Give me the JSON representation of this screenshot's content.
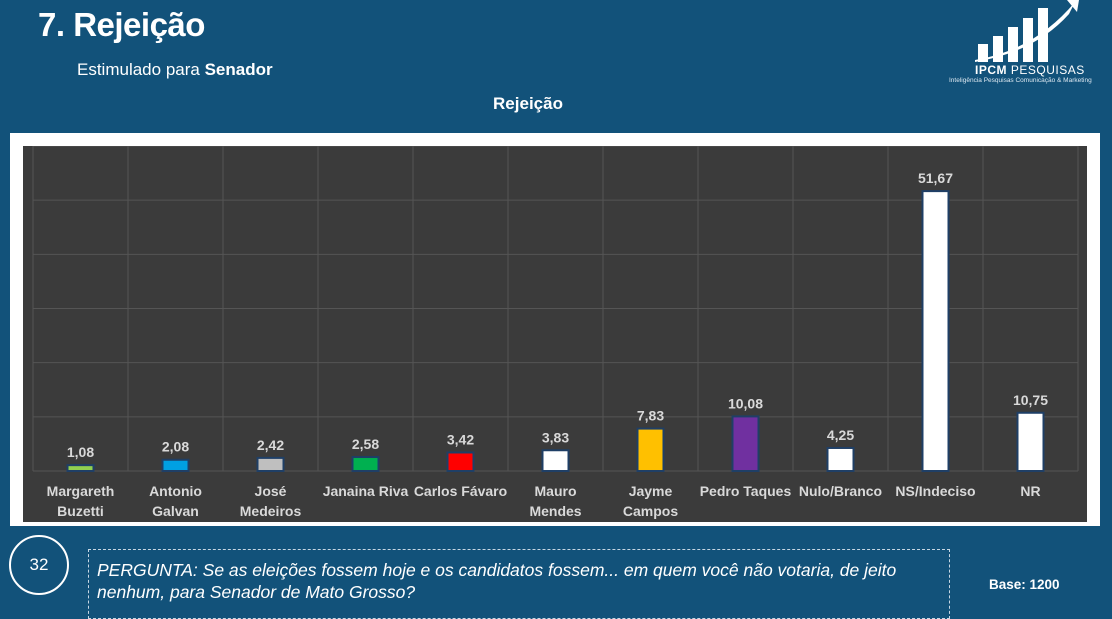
{
  "header": {
    "title": "7. Rejeição",
    "subtitle_prefix": "Estimulado para ",
    "subtitle_bold": "Senador"
  },
  "logo": {
    "brand_bold": "IPCM",
    "brand_light": "PESQUISAS",
    "tagline": "Inteligência Pesquisas Comunicação & Marketing"
  },
  "chart_data": {
    "type": "bar",
    "title": "Rejeição",
    "categories": [
      [
        "Margareth",
        "Buzetti"
      ],
      [
        "Antonio",
        "Galvan"
      ],
      [
        "José",
        "Medeiros"
      ],
      [
        "Janaina Riva"
      ],
      [
        "Carlos Fávaro"
      ],
      [
        "Mauro",
        "Mendes"
      ],
      [
        "Jayme",
        "Campos"
      ],
      [
        "Pedro Taques"
      ],
      [
        "Nulo/Branco"
      ],
      [
        "NS/Indeciso"
      ],
      [
        "NR"
      ]
    ],
    "values": [
      1.08,
      2.08,
      2.42,
      2.58,
      3.42,
      3.83,
      7.83,
      10.08,
      4.25,
      51.67,
      10.75
    ],
    "labels": [
      "1,08",
      "2,08",
      "2,42",
      "2,58",
      "3,42",
      "3,83",
      "7,83",
      "10,08",
      "4,25",
      "51,67",
      "10,75"
    ],
    "colors": [
      "#92d050",
      "#00a0e3",
      "#bfbfbf",
      "#00b050",
      "#ff0000",
      "#ffffff",
      "#ffc000",
      "#7030a0",
      "#ffffff",
      "#ffffff",
      "#ffffff"
    ],
    "ylim": [
      0,
      60
    ],
    "xlabel": "",
    "ylabel": "",
    "grid": true
  },
  "footer": {
    "page_number": "32",
    "question": "PERGUNTA:  Se as eleições fossem hoje e os candidatos fossem... em quem você não votaria, de jeito nenhum, para Senador de Mato Grosso?",
    "base": "Base: 1200"
  }
}
